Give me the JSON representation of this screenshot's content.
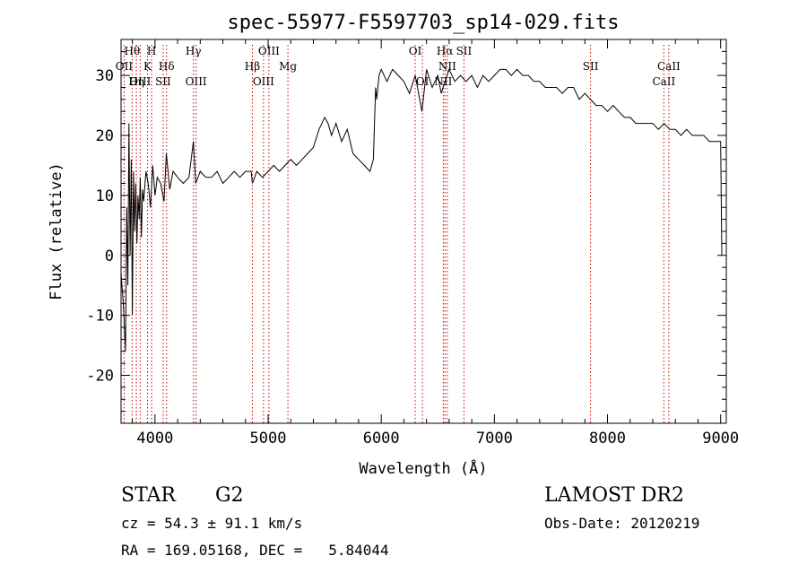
{
  "chart_data": {
    "type": "line",
    "title": "spec-55977-F5597703_sp14-029.fits",
    "xlabel": "Wavelength (Å)",
    "ylabel": "Flux (relative)",
    "xlim": [
      3700,
      9050
    ],
    "ylim": [
      -28,
      36
    ],
    "xticks": [
      4000,
      5000,
      6000,
      7000,
      8000,
      9000
    ],
    "yticks": [
      -20,
      -10,
      0,
      10,
      20,
      30
    ],
    "grid": false,
    "line_color": "#000000",
    "marker_color": "#cc0000",
    "series": [
      {
        "name": "flux",
        "x": [
          3700,
          3720,
          3740,
          3750,
          3760,
          3770,
          3780,
          3790,
          3800,
          3810,
          3820,
          3830,
          3840,
          3850,
          3860,
          3870,
          3880,
          3890,
          3900,
          3920,
          3940,
          3960,
          3980,
          4000,
          4020,
          4050,
          4080,
          4100,
          4130,
          4160,
          4200,
          4250,
          4300,
          4340,
          4360,
          4400,
          4450,
          4500,
          4550,
          4600,
          4650,
          4700,
          4750,
          4800,
          4850,
          4861,
          4900,
          4950,
          5000,
          5050,
          5100,
          5150,
          5200,
          5250,
          5300,
          5350,
          5400,
          5450,
          5500,
          5530,
          5560,
          5600,
          5650,
          5700,
          5750,
          5800,
          5850,
          5900,
          5930,
          5950,
          5960,
          5980,
          6000,
          6050,
          6100,
          6150,
          6200,
          6250,
          6300,
          6320,
          6360,
          6400,
          6450,
          6500,
          6530,
          6563,
          6600,
          6650,
          6700,
          6750,
          6800,
          6850,
          6900,
          6950,
          7000,
          7050,
          7100,
          7150,
          7200,
          7250,
          7300,
          7350,
          7400,
          7450,
          7500,
          7550,
          7600,
          7650,
          7700,
          7750,
          7800,
          7850,
          7900,
          7950,
          8000,
          8050,
          8100,
          8150,
          8200,
          8250,
          8300,
          8350,
          8400,
          8450,
          8500,
          8550,
          8600,
          8650,
          8700,
          8750,
          8800,
          8850,
          8900,
          8950,
          9000,
          9010
        ],
        "values": [
          -3,
          -8,
          -16,
          8,
          -5,
          22,
          0,
          16,
          -10,
          14,
          4,
          12,
          2,
          10,
          6,
          13,
          3,
          11,
          9,
          14,
          12,
          8,
          15,
          10,
          13,
          12,
          9,
          17,
          11,
          14,
          13,
          12,
          13,
          19,
          12,
          14,
          13,
          13,
          14,
          12,
          13,
          14,
          13,
          14,
          14,
          12,
          14,
          13,
          14,
          15,
          14,
          15,
          16,
          15,
          16,
          17,
          18,
          21,
          23,
          22,
          20,
          22,
          19,
          21,
          17,
          16,
          15,
          14,
          16,
          28,
          26,
          30,
          31,
          29,
          31,
          30,
          29,
          27,
          30,
          28,
          24,
          31,
          28,
          30,
          27,
          29,
          31,
          29,
          30,
          29,
          30,
          28,
          30,
          29,
          30,
          31,
          31,
          30,
          31,
          30,
          30,
          29,
          29,
          28,
          28,
          28,
          27,
          28,
          28,
          26,
          27,
          26,
          25,
          25,
          24,
          25,
          24,
          23,
          23,
          22,
          22,
          22,
          22,
          21,
          22,
          21,
          21,
          20,
          21,
          20,
          20,
          20,
          19,
          19,
          19,
          0
        ]
      }
    ],
    "lines": [
      {
        "label": "Hθ",
        "x": 3798
      },
      {
        "label": "H",
        "x": 3970
      },
      {
        "label": "Hγ",
        "x": 4340
      },
      {
        "label": "OIII",
        "x": 5007
      },
      {
        "label": "OI",
        "x": 6300
      },
      {
        "label": "Hα",
        "x": 6563
      },
      {
        "label": "SII",
        "x": 6731
      },
      {
        "label": "OII",
        "x": 3727
      },
      {
        "label": "K",
        "x": 3934
      },
      {
        "label": "Hδ",
        "x": 4102
      },
      {
        "label": "Hβ",
        "x": 4861
      },
      {
        "label": "Mg",
        "x": 5175
      },
      {
        "label": "NII",
        "x": 6584
      },
      {
        "label": "SII",
        "x": 7850
      },
      {
        "label": "CaII",
        "x": 8542
      },
      {
        "label": "OIII",
        "x": 3869
      },
      {
        "label": "Hη",
        "x": 3835
      },
      {
        "label": "SII",
        "x": 4072
      },
      {
        "label": "OIII",
        "x": 4363
      },
      {
        "label": "OIII",
        "x": 4959
      },
      {
        "label": "OI",
        "x": 6364
      },
      {
        "label": "NII",
        "x": 6548
      },
      {
        "label": "CaII",
        "x": 8498
      }
    ]
  },
  "info": {
    "object_class": "STAR",
    "subclass": "G2",
    "survey": "LAMOST DR2",
    "cz": "cz = 54.3 ± 91.1 km/s",
    "obs_date": "Obs-Date: 20120219",
    "coords": "RA = 169.05168, DEC =   5.84044"
  }
}
